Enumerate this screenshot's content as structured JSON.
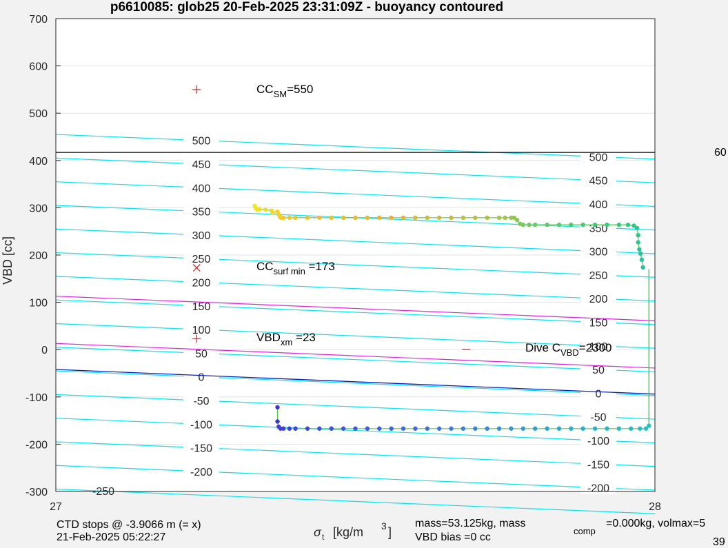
{
  "chart_data": {
    "type": "scatter",
    "title": "p6610085: glob25 20-Feb-2025 23:31:09Z - buoyancy contoured",
    "ylabel": "VBD [cc]",
    "xlabel": {
      "sym": "σ",
      "sub": "t",
      "unit": "[kg/m",
      "sup": "3",
      "close": "]"
    },
    "xlim": [
      27,
      28
    ],
    "ylim": [
      -300,
      700
    ],
    "x_ticks": [
      "27",
      "28"
    ],
    "y_ticks": [
      "700",
      "600",
      "500",
      "400",
      "300",
      "200",
      "100",
      "0",
      "-100",
      "-200",
      "-300"
    ],
    "y_tick_values": [
      700,
      600,
      500,
      400,
      300,
      200,
      100,
      0,
      -100,
      -200,
      -300
    ],
    "grid": true,
    "horizontal_line": {
      "y": 417,
      "color": "#000000"
    },
    "contours": {
      "color": "#00e5f2",
      "levels": [
        500,
        450,
        400,
        350,
        300,
        250,
        200,
        150,
        100,
        50,
        0,
        -50,
        -100,
        -150,
        -200,
        -250
      ],
      "left_labels": [
        "500",
        "450",
        "400",
        "350",
        "300",
        "250",
        "200",
        "150",
        "100",
        "50",
        "0",
        "-50",
        "-100",
        "-150",
        "-200"
      ],
      "right_labels": [
        "500",
        "450",
        "400",
        "350",
        "300",
        "250",
        "200",
        "150",
        "100",
        "50",
        "0",
        "-50",
        "-100",
        "-150",
        "-200"
      ],
      "extra_label": "-250"
    },
    "magenta_lines": {
      "color": "#e022e0",
      "levels": [
        150,
        50
      ]
    },
    "neutral_line": {
      "color": "#0b1cc0",
      "level": 0
    },
    "markers": [
      {
        "x": 27.235,
        "y": 550,
        "symbol": "+",
        "color": "#e8262a"
      },
      {
        "x": 27.235,
        "y": 173,
        "symbol": "x",
        "color": "#e8262a"
      },
      {
        "x": 27.235,
        "y": 23,
        "symbol": "+",
        "color": "#e8262a"
      },
      {
        "x": 27.685,
        "y": 0,
        "symbol": "-",
        "color": "#e8262a"
      }
    ],
    "annotations": [
      {
        "main": "CC",
        "sub": "SM",
        "tail": "=550"
      },
      {
        "main": "CC",
        "sub": "surf min",
        "tail": " =173"
      },
      {
        "main": "VBD",
        "sub": "xm",
        "tail": " =23"
      },
      {
        "main": "Dive C",
        "sub": "VBD",
        "tail": "=2300"
      }
    ],
    "upper_trace": [
      [
        27.332,
        304
      ],
      [
        27.334,
        299
      ],
      [
        27.336,
        296
      ],
      [
        27.34,
        297
      ],
      [
        27.35,
        296
      ],
      [
        27.36,
        294
      ],
      [
        27.362,
        290
      ],
      [
        27.37,
        292
      ],
      [
        27.372,
        286
      ],
      [
        27.374,
        281
      ],
      [
        27.376,
        279
      ],
      [
        27.38,
        279
      ],
      [
        27.39,
        279
      ],
      [
        27.4,
        279
      ],
      [
        27.42,
        279
      ],
      [
        27.44,
        279
      ],
      [
        27.46,
        279
      ],
      [
        27.48,
        279
      ],
      [
        27.5,
        279
      ],
      [
        27.52,
        279
      ],
      [
        27.54,
        279
      ],
      [
        27.56,
        279
      ],
      [
        27.58,
        279
      ],
      [
        27.6,
        279
      ],
      [
        27.62,
        279
      ],
      [
        27.64,
        279
      ],
      [
        27.66,
        279
      ],
      [
        27.68,
        279
      ],
      [
        27.7,
        279
      ],
      [
        27.72,
        279
      ],
      [
        27.74,
        279
      ],
      [
        27.75,
        279
      ],
      [
        27.76,
        279
      ],
      [
        27.765,
        279
      ],
      [
        27.77,
        274
      ],
      [
        27.775,
        266
      ],
      [
        27.78,
        264
      ],
      [
        27.79,
        264
      ],
      [
        27.8,
        264
      ],
      [
        27.82,
        264
      ],
      [
        27.84,
        264
      ],
      [
        27.86,
        264
      ],
      [
        27.88,
        264
      ],
      [
        27.9,
        264
      ],
      [
        27.92,
        264
      ],
      [
        27.94,
        264
      ],
      [
        27.955,
        264
      ],
      [
        27.965,
        262
      ],
      [
        27.97,
        257
      ],
      [
        27.972,
        242
      ],
      [
        27.972,
        227
      ],
      [
        27.974,
        212
      ],
      [
        27.976,
        203
      ],
      [
        27.978,
        190
      ],
      [
        27.98,
        174
      ]
    ],
    "lower_trace": [
      [
        27.37,
        -122
      ],
      [
        27.37,
        -152
      ],
      [
        27.372,
        -163
      ],
      [
        27.375,
        -167
      ],
      [
        27.38,
        -167
      ],
      [
        27.39,
        -167
      ],
      [
        27.4,
        -167
      ],
      [
        27.42,
        -167
      ],
      [
        27.44,
        -167
      ],
      [
        27.46,
        -167
      ],
      [
        27.48,
        -167
      ],
      [
        27.5,
        -167
      ],
      [
        27.52,
        -167
      ],
      [
        27.54,
        -167
      ],
      [
        27.56,
        -167
      ],
      [
        27.58,
        -167
      ],
      [
        27.6,
        -167
      ],
      [
        27.62,
        -167
      ],
      [
        27.64,
        -167
      ],
      [
        27.66,
        -167
      ],
      [
        27.68,
        -167
      ],
      [
        27.7,
        -167
      ],
      [
        27.72,
        -167
      ],
      [
        27.74,
        -167
      ],
      [
        27.76,
        -167
      ],
      [
        27.78,
        -167
      ],
      [
        27.8,
        -167
      ],
      [
        27.82,
        -167
      ],
      [
        27.84,
        -167
      ],
      [
        27.86,
        -167
      ],
      [
        27.88,
        -167
      ],
      [
        27.9,
        -167
      ],
      [
        27.92,
        -167
      ],
      [
        27.94,
        -167
      ],
      [
        27.96,
        -167
      ],
      [
        27.975,
        -167
      ],
      [
        27.985,
        -167
      ],
      [
        27.99,
        -161
      ]
    ],
    "connector": [
      [
        27.99,
        170
      ],
      [
        27.99,
        -161
      ]
    ]
  },
  "footer": {
    "line1": "CTD stops @ -3.9066 m (= x)",
    "line2": "21-Feb-2025 05:22:27",
    "mass1": "mass=53.125kg, mass",
    "mass_sub": "comp",
    "mass2": "=0.000kg, volmax=5",
    "bias": "VBD bias =0 cc",
    "edge_top": "60",
    "edge_bottom": "39"
  }
}
